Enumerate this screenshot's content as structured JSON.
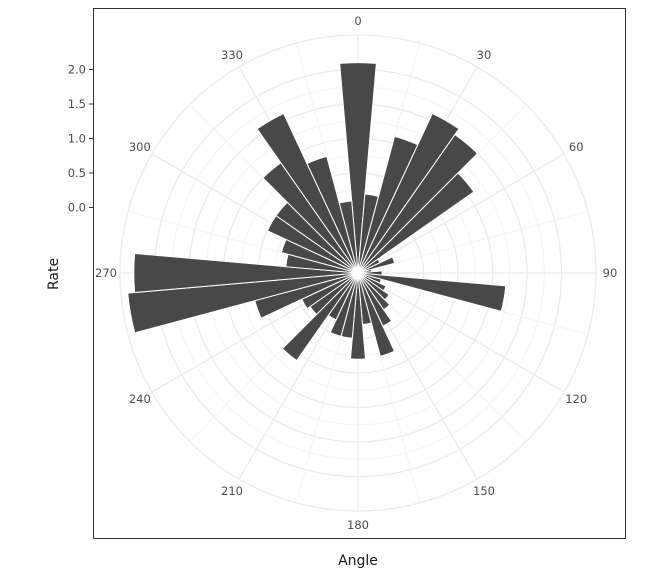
{
  "chart_data": {
    "type": "bar",
    "coord": "polar",
    "xlabel": "Angle",
    "ylabel": "Rate",
    "angle_ticks": [
      "0",
      "30",
      "60",
      "90",
      "120",
      "150",
      "180",
      "210",
      "240",
      "270",
      "300",
      "330"
    ],
    "radial_ticks": [
      "0.0",
      "0.5",
      "1.0",
      "1.5",
      "2.0"
    ],
    "radial_tick_values": [
      0,
      0.5,
      1.0,
      1.5,
      2.0
    ],
    "ylim": [
      -0.95,
      2.5
    ],
    "grid": true,
    "bar_color": "#484848",
    "bars": [
      {
        "angle": 0,
        "value": 2.1
      },
      {
        "angle": 10,
        "value": 0.2
      },
      {
        "angle": 20,
        "value": 1.1
      },
      {
        "angle": 30,
        "value": 1.6
      },
      {
        "angle": 40,
        "value": 1.5
      },
      {
        "angle": 50,
        "value": 1.1
      },
      {
        "angle": 60,
        "value": -0.6
      },
      {
        "angle": 70,
        "value": -0.4
      },
      {
        "angle": 80,
        "value": -0.75
      },
      {
        "angle": 90,
        "value": -0.6
      },
      {
        "angle": 100,
        "value": 1.2
      },
      {
        "angle": 110,
        "value": -0.6
      },
      {
        "angle": 120,
        "value": -0.5
      },
      {
        "angle": 130,
        "value": -0.4
      },
      {
        "angle": 140,
        "value": -0.3
      },
      {
        "angle": 150,
        "value": -0.1
      },
      {
        "angle": 160,
        "value": 0.3
      },
      {
        "angle": 170,
        "value": -0.2
      },
      {
        "angle": 180,
        "value": 0.3
      },
      {
        "angle": 190,
        "value": 0.0
      },
      {
        "angle": 200,
        "value": 0.0
      },
      {
        "angle": 210,
        "value": -0.2
      },
      {
        "angle": 220,
        "value": 0.6
      },
      {
        "angle": 230,
        "value": -0.1
      },
      {
        "angle": 240,
        "value": -0.05
      },
      {
        "angle": 250,
        "value": 0.6
      },
      {
        "angle": 260,
        "value": 2.4
      },
      {
        "angle": 270,
        "value": 2.3
      },
      {
        "angle": 280,
        "value": 0.1
      },
      {
        "angle": 290,
        "value": 0.2
      },
      {
        "angle": 300,
        "value": 0.5
      },
      {
        "angle": 310,
        "value": 0.5
      },
      {
        "angle": 320,
        "value": 1.0
      },
      {
        "angle": 330,
        "value": 1.6
      },
      {
        "angle": 340,
        "value": 0.8
      },
      {
        "angle": 350,
        "value": 0.1
      }
    ]
  }
}
